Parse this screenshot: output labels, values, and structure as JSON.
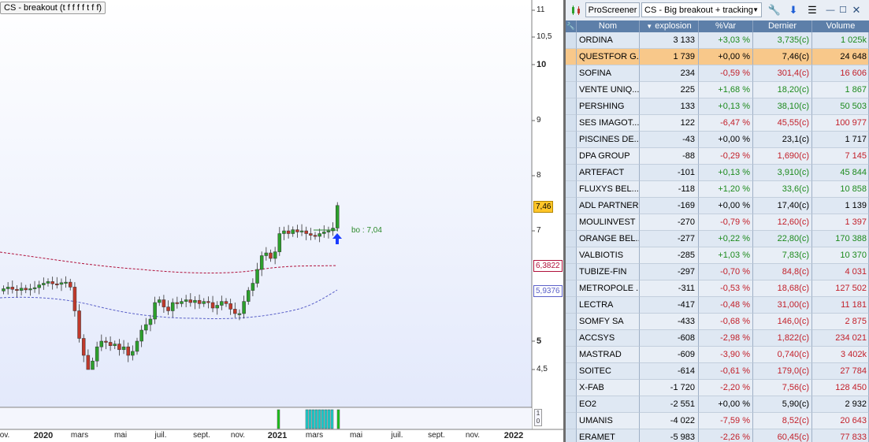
{
  "chart": {
    "title": "CS - breakout (t f f f f t f f)",
    "bo_label": "bo : 7,04",
    "last_price_tag": "7,46",
    "ma1_tag": "6,3822",
    "ma2_tag": "5,9376",
    "y_ticks": [
      {
        "label": "11",
        "major": false,
        "value": 11
      },
      {
        "label": "10,5",
        "major": false,
        "value": 10.5
      },
      {
        "label": "10",
        "major": true,
        "value": 10
      },
      {
        "label": "9",
        "major": false,
        "value": 9
      },
      {
        "label": "8",
        "major": false,
        "value": 8
      },
      {
        "label": "7",
        "major": false,
        "value": 7
      },
      {
        "label": "5",
        "major": true,
        "value": 5
      },
      {
        "label": "4,5",
        "major": false,
        "value": 4.5
      }
    ],
    "x_ticks": [
      {
        "label": "ov.",
        "year": false
      },
      {
        "label": "2020",
        "year": true
      },
      {
        "label": "mars",
        "year": false
      },
      {
        "label": "mai",
        "year": false
      },
      {
        "label": "juil.",
        "year": false
      },
      {
        "label": "sept.",
        "year": false
      },
      {
        "label": "nov.",
        "year": false
      },
      {
        "label": "2021",
        "year": true
      },
      {
        "label": "mars",
        "year": false
      },
      {
        "label": "mai",
        "year": false
      },
      {
        "label": "juil.",
        "year": false
      },
      {
        "label": "sept.",
        "year": false
      },
      {
        "label": "nov.",
        "year": false
      },
      {
        "label": "2022",
        "year": true
      }
    ],
    "indicator_scale": [
      "1",
      "0"
    ],
    "colors": {
      "up": "#2ca02c",
      "down": "#c0392b",
      "ma1": "#b0103a",
      "ma2": "#5a60c8",
      "signal": "#1a3cff",
      "indicator": "#18d0d0",
      "indicator_green": "#19c319"
    }
  },
  "screener": {
    "toolbar": {
      "app_label": "ProScreener",
      "screen_name": "CS - Big breakout + tracking"
    },
    "columns": {
      "nom": "Nom",
      "explosion": "explosion",
      "var": "%Var",
      "dernier": "Dernier",
      "volume": "Volume"
    },
    "rows": [
      {
        "nom": "ORDINA",
        "explosion": "3 133",
        "var": "+3,03 %",
        "dernier": "3,735(c)",
        "volume": "1 025k",
        "trend": "pos"
      },
      {
        "nom": "QUESTFOR G...",
        "explosion": "1 739",
        "var": "+0,00 %",
        "dernier": "7,46(c)",
        "volume": "24 648",
        "trend": "neu",
        "selected": true
      },
      {
        "nom": "SOFINA",
        "explosion": "234",
        "var": "-0,59 %",
        "dernier": "301,4(c)",
        "volume": "16 606",
        "trend": "neg"
      },
      {
        "nom": "VENTE UNIQ...",
        "explosion": "225",
        "var": "+1,68 %",
        "dernier": "18,20(c)",
        "volume": "1 867",
        "trend": "pos"
      },
      {
        "nom": "PERSHING",
        "explosion": "133",
        "var": "+0,13 %",
        "dernier": "38,10(c)",
        "volume": "50 503",
        "trend": "pos"
      },
      {
        "nom": "SES IMAGOT...",
        "explosion": "122",
        "var": "-6,47 %",
        "dernier": "45,55(c)",
        "volume": "100 977",
        "trend": "neg"
      },
      {
        "nom": "PISCINES DE...",
        "explosion": "-43",
        "var": "+0,00 %",
        "dernier": "23,1(c)",
        "volume": "1 717",
        "trend": "neu"
      },
      {
        "nom": "DPA GROUP",
        "explosion": "-88",
        "var": "-0,29 %",
        "dernier": "1,690(c)",
        "volume": "7 145",
        "trend": "neg"
      },
      {
        "nom": "ARTEFACT",
        "explosion": "-101",
        "var": "+0,13 %",
        "dernier": "3,910(c)",
        "volume": "45 844",
        "trend": "pos"
      },
      {
        "nom": "FLUXYS BEL...",
        "explosion": "-118",
        "var": "+1,20 %",
        "dernier": "33,6(c)",
        "volume": "10 858",
        "trend": "pos"
      },
      {
        "nom": "ADL PARTNER",
        "explosion": "-169",
        "var": "+0,00 %",
        "dernier": "17,40(c)",
        "volume": "1 139",
        "trend": "neu"
      },
      {
        "nom": "MOULINVEST",
        "explosion": "-270",
        "var": "-0,79 %",
        "dernier": "12,60(c)",
        "volume": "1 397",
        "trend": "neg"
      },
      {
        "nom": "ORANGE BEL...",
        "explosion": "-277",
        "var": "+0,22 %",
        "dernier": "22,80(c)",
        "volume": "170 388",
        "trend": "pos"
      },
      {
        "nom": "VALBIOTIS",
        "explosion": "-285",
        "var": "+1,03 %",
        "dernier": "7,83(c)",
        "volume": "10 370",
        "trend": "pos"
      },
      {
        "nom": "TUBIZE-FIN",
        "explosion": "-297",
        "var": "-0,70 %",
        "dernier": "84,8(c)",
        "volume": "4 031",
        "trend": "neg"
      },
      {
        "nom": "METROPOLE ...",
        "explosion": "-311",
        "var": "-0,53 %",
        "dernier": "18,68(c)",
        "volume": "127 502",
        "trend": "neg"
      },
      {
        "nom": "LECTRA",
        "explosion": "-417",
        "var": "-0,48 %",
        "dernier": "31,00(c)",
        "volume": "11 181",
        "trend": "neg"
      },
      {
        "nom": "SOMFY SA",
        "explosion": "-433",
        "var": "-0,68 %",
        "dernier": "146,0(c)",
        "volume": "2 875",
        "trend": "neg"
      },
      {
        "nom": "ACCSYS",
        "explosion": "-608",
        "var": "-2,98 %",
        "dernier": "1,822(c)",
        "volume": "234 021",
        "trend": "neg"
      },
      {
        "nom": "MASTRAD",
        "explosion": "-609",
        "var": "-3,90 %",
        "dernier": "0,740(c)",
        "volume": "3 402k",
        "trend": "neg"
      },
      {
        "nom": "SOITEC",
        "explosion": "-614",
        "var": "-0,61 %",
        "dernier": "179,0(c)",
        "volume": "27 784",
        "trend": "neg"
      },
      {
        "nom": "X-FAB",
        "explosion": "-1 720",
        "var": "-2,20 %",
        "dernier": "7,56(c)",
        "volume": "128 450",
        "trend": "neg"
      },
      {
        "nom": "EO2",
        "explosion": "-2 551",
        "var": "+0,00 %",
        "dernier": "5,90(c)",
        "volume": "2 932",
        "trend": "neu"
      },
      {
        "nom": "UMANIS",
        "explosion": "-4 022",
        "var": "-7,59 %",
        "dernier": "8,52(c)",
        "volume": "20 643",
        "trend": "neg"
      },
      {
        "nom": "ERAMET",
        "explosion": "-5 983",
        "var": "-2,26 %",
        "dernier": "60,45(c)",
        "volume": "77 833",
        "trend": "neg"
      }
    ]
  }
}
